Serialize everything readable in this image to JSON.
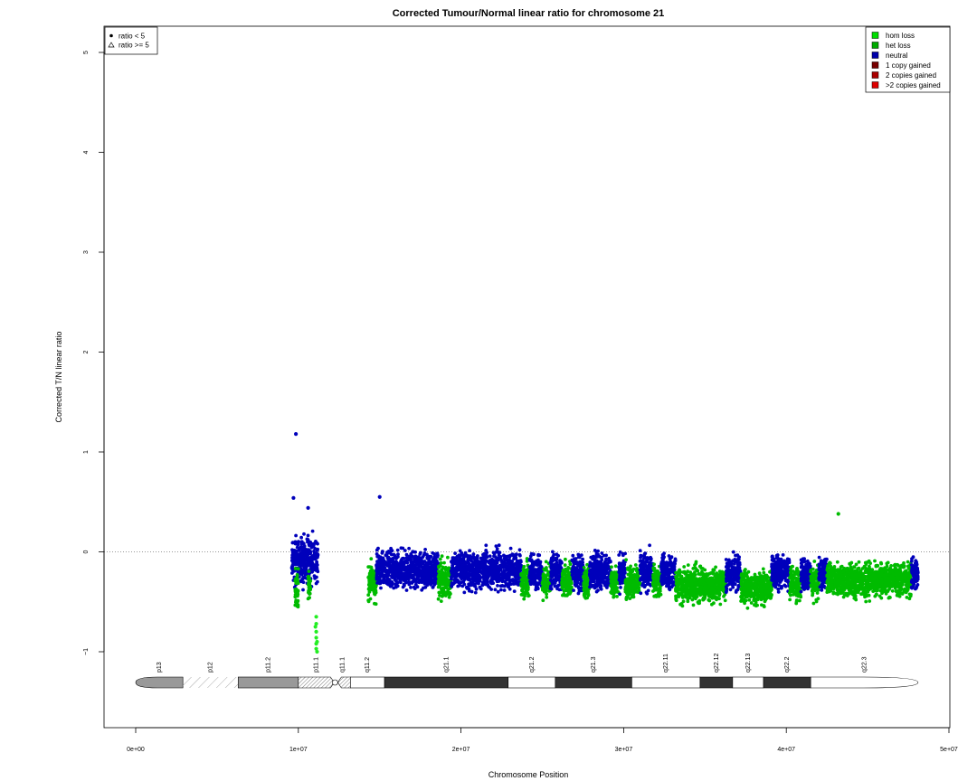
{
  "chart_data": {
    "type": "scatter",
    "title": "Corrected Tumour/Normal linear ratio for chromosome  21",
    "xlabel": "Chromosome Position",
    "ylabel": "Corrected T/N linear ratio",
    "xlim": [
      0,
      50000000
    ],
    "ylim": [
      -1.75,
      5.25
    ],
    "x_ticks": [
      {
        "value": 0,
        "label": "0e+00"
      },
      {
        "value": 10000000,
        "label": "1e+07"
      },
      {
        "value": 20000000,
        "label": "2e+07"
      },
      {
        "value": 30000000,
        "label": "3e+07"
      },
      {
        "value": 40000000,
        "label": "4e+07"
      },
      {
        "value": 50000000,
        "label": "5e+07"
      }
    ],
    "y_ticks": [
      {
        "value": -1,
        "label": "−1"
      },
      {
        "value": 0,
        "label": "0"
      },
      {
        "value": 1,
        "label": "1"
      },
      {
        "value": 2,
        "label": "2"
      },
      {
        "value": 3,
        "label": "3"
      },
      {
        "value": 4,
        "label": "4"
      },
      {
        "value": 5,
        "label": "5"
      }
    ],
    "reference_line": {
      "y": 0,
      "style": "dotted"
    },
    "point_shape_legend": {
      "position": "top-left",
      "entries": [
        {
          "label": "ratio < 5",
          "shape": "dot"
        },
        {
          "label": "ratio >= 5",
          "shape": "triangle"
        }
      ]
    },
    "status_legend": {
      "position": "top-right",
      "entries": [
        {
          "label": "hom loss",
          "color": "#00dd00"
        },
        {
          "label": "het loss",
          "color": "#00aa00"
        },
        {
          "label": "neutral",
          "color": "#0000aa"
        },
        {
          "label": "1 copy gained",
          "color": "#770000"
        },
        {
          "label": "2 copies gained",
          "color": "#aa0000"
        },
        {
          "label": ">2 copies gained",
          "color": "#dd0000"
        }
      ]
    },
    "colors": {
      "neutral": "#0000bb",
      "het_loss": "#00bb00",
      "hom_loss": "#22ee22"
    },
    "segments": [
      {
        "start": 9600000,
        "end": 11200000,
        "status": "neutral",
        "mean": -0.08,
        "spread": 0.38
      },
      {
        "start": 9800000,
        "end": 10000000,
        "status": "het_loss",
        "mean": -0.35,
        "spread": 0.3
      },
      {
        "start": 10600000,
        "end": 10750000,
        "status": "het_loss",
        "mean": -0.35,
        "spread": 0.25
      },
      {
        "start": 14300000,
        "end": 14800000,
        "status": "het_loss",
        "mean": -0.3,
        "spread": 0.3
      },
      {
        "start": 14800000,
        "end": 18600000,
        "status": "neutral",
        "mean": -0.18,
        "spread": 0.3
      },
      {
        "start": 18600000,
        "end": 19400000,
        "status": "het_loss",
        "mean": -0.28,
        "spread": 0.28
      },
      {
        "start": 19400000,
        "end": 23700000,
        "status": "neutral",
        "mean": -0.18,
        "spread": 0.3
      },
      {
        "start": 23700000,
        "end": 24200000,
        "status": "het_loss",
        "mean": -0.3,
        "spread": 0.28
      },
      {
        "start": 24200000,
        "end": 25000000,
        "status": "neutral",
        "mean": -0.2,
        "spread": 0.28
      },
      {
        "start": 25000000,
        "end": 25500000,
        "status": "het_loss",
        "mean": -0.3,
        "spread": 0.28
      },
      {
        "start": 25500000,
        "end": 26200000,
        "status": "neutral",
        "mean": -0.2,
        "spread": 0.28
      },
      {
        "start": 26200000,
        "end": 26800000,
        "status": "het_loss",
        "mean": -0.3,
        "spread": 0.26
      },
      {
        "start": 26800000,
        "end": 27500000,
        "status": "neutral",
        "mean": -0.2,
        "spread": 0.28
      },
      {
        "start": 27500000,
        "end": 27900000,
        "status": "het_loss",
        "mean": -0.3,
        "spread": 0.26
      },
      {
        "start": 27900000,
        "end": 29200000,
        "status": "neutral",
        "mean": -0.2,
        "spread": 0.3
      },
      {
        "start": 29200000,
        "end": 29700000,
        "status": "het_loss",
        "mean": -0.3,
        "spread": 0.26
      },
      {
        "start": 29700000,
        "end": 30100000,
        "status": "neutral",
        "mean": -0.2,
        "spread": 0.28
      },
      {
        "start": 30100000,
        "end": 31000000,
        "status": "het_loss",
        "mean": -0.3,
        "spread": 0.26
      },
      {
        "start": 31000000,
        "end": 31800000,
        "status": "neutral",
        "mean": -0.2,
        "spread": 0.3
      },
      {
        "start": 31800000,
        "end": 32300000,
        "status": "het_loss",
        "mean": -0.3,
        "spread": 0.26
      },
      {
        "start": 32300000,
        "end": 33200000,
        "status": "neutral",
        "mean": -0.2,
        "spread": 0.3
      },
      {
        "start": 33200000,
        "end": 36300000,
        "status": "het_loss",
        "mean": -0.33,
        "spread": 0.28
      },
      {
        "start": 36300000,
        "end": 37200000,
        "status": "neutral",
        "mean": -0.22,
        "spread": 0.28
      },
      {
        "start": 37200000,
        "end": 39100000,
        "status": "het_loss",
        "mean": -0.36,
        "spread": 0.28
      },
      {
        "start": 39100000,
        "end": 40200000,
        "status": "neutral",
        "mean": -0.2,
        "spread": 0.28
      },
      {
        "start": 40200000,
        "end": 40900000,
        "status": "het_loss",
        "mean": -0.32,
        "spread": 0.26
      },
      {
        "start": 40900000,
        "end": 41500000,
        "status": "neutral",
        "mean": -0.22,
        "spread": 0.26
      },
      {
        "start": 41500000,
        "end": 42000000,
        "status": "het_loss",
        "mean": -0.3,
        "spread": 0.26
      },
      {
        "start": 42000000,
        "end": 42500000,
        "status": "neutral",
        "mean": -0.22,
        "spread": 0.26
      },
      {
        "start": 42500000,
        "end": 47700000,
        "status": "het_loss",
        "mean": -0.28,
        "spread": 0.28
      },
      {
        "start": 47700000,
        "end": 48100000,
        "status": "neutral",
        "mean": -0.22,
        "spread": 0.26
      }
    ],
    "outliers": [
      {
        "x": 9850000,
        "y": 1.18,
        "status": "neutral"
      },
      {
        "x": 9700000,
        "y": 0.54,
        "status": "neutral"
      },
      {
        "x": 10600000,
        "y": 0.44,
        "status": "neutral"
      },
      {
        "x": 15000000,
        "y": 0.55,
        "status": "neutral"
      },
      {
        "x": 43200000,
        "y": 0.38,
        "status": "het_loss"
      },
      {
        "x": 11100000,
        "y": -0.65,
        "status": "hom_loss"
      },
      {
        "x": 11100000,
        "y": -0.72,
        "status": "hom_loss"
      },
      {
        "x": 11100000,
        "y": -0.8,
        "status": "hom_loss"
      },
      {
        "x": 11100000,
        "y": -0.86,
        "status": "hom_loss"
      },
      {
        "x": 11100000,
        "y": -0.92,
        "status": "hom_loss"
      },
      {
        "x": 11100000,
        "y": -0.97,
        "status": "hom_loss"
      },
      {
        "x": 11150000,
        "y": -1.0,
        "status": "hom_loss"
      },
      {
        "x": 11150000,
        "y": -0.9,
        "status": "hom_loss"
      },
      {
        "x": 11050000,
        "y": -0.75,
        "status": "hom_loss"
      }
    ],
    "ideogram": {
      "bands": [
        {
          "name": "p13",
          "start": 0,
          "end": 2900000,
          "stain": "gpos50",
          "shape": "left-cap"
        },
        {
          "name": "p12",
          "start": 2900000,
          "end": 6300000,
          "stain": "stalk"
        },
        {
          "name": "p11.2",
          "start": 6300000,
          "end": 10000000,
          "stain": "gvar"
        },
        {
          "name": "p11.1",
          "start": 10000000,
          "end": 12200000,
          "stain": "acen-hatch"
        },
        {
          "name": "q11.1",
          "start": 12200000,
          "end": 13200000,
          "stain": "acen-q"
        },
        {
          "name": "q11.2",
          "start": 13200000,
          "end": 15300000,
          "stain": "gneg"
        },
        {
          "name": "q21.1",
          "start": 15300000,
          "end": 22900000,
          "stain": "gpos100"
        },
        {
          "name": "q21.2",
          "start": 22900000,
          "end": 25800000,
          "stain": "gneg"
        },
        {
          "name": "q21.3",
          "start": 25800000,
          "end": 30500000,
          "stain": "gpos100"
        },
        {
          "name": "q22.11",
          "start": 30500000,
          "end": 34700000,
          "stain": "gneg"
        },
        {
          "name": "q22.12",
          "start": 34700000,
          "end": 36700000,
          "stain": "gpos100"
        },
        {
          "name": "q22.13",
          "start": 36700000,
          "end": 38600000,
          "stain": "gneg"
        },
        {
          "name": "q22.2",
          "start": 38600000,
          "end": 41500000,
          "stain": "gpos100"
        },
        {
          "name": "q22.3",
          "start": 41500000,
          "end": 48100000,
          "stain": "gneg",
          "shape": "right-cap"
        }
      ]
    }
  }
}
